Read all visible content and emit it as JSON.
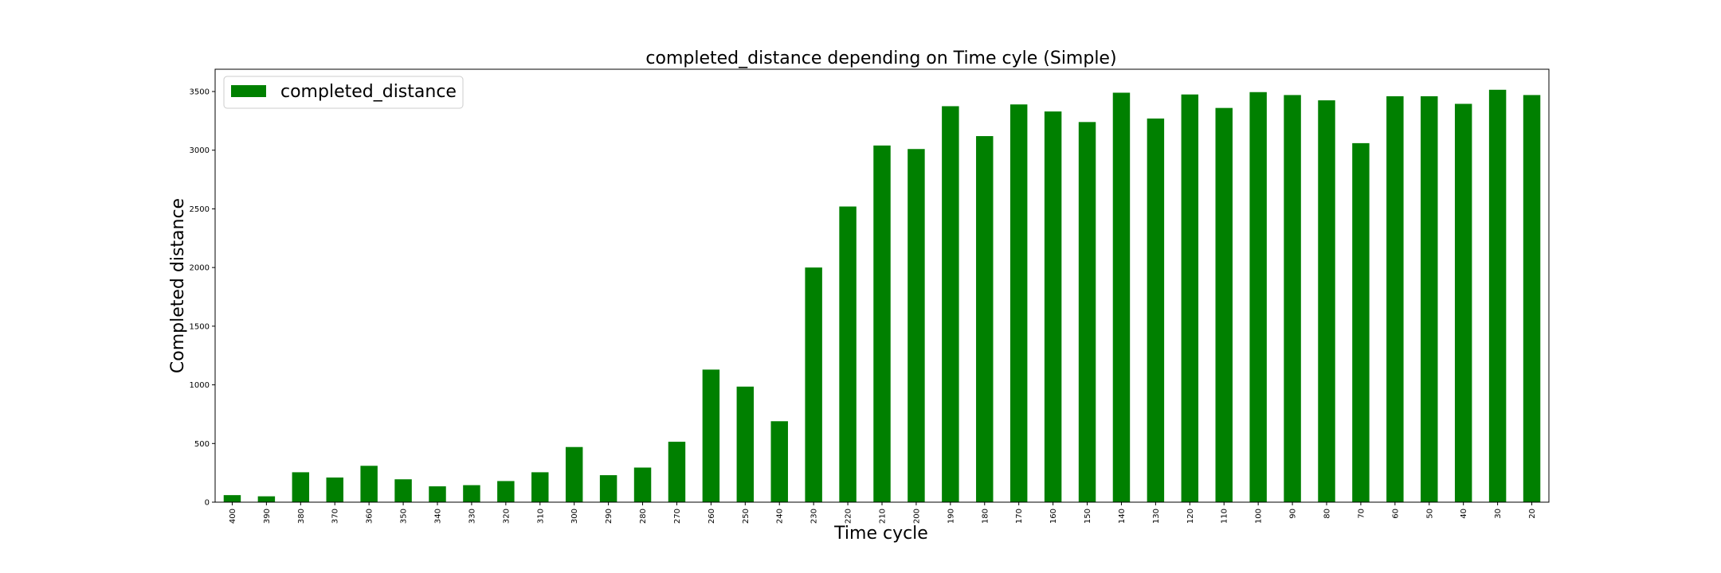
{
  "chart_data": {
    "type": "bar",
    "title": "completed_distance depending on Time cyle (Simple)",
    "xlabel": "Time cycle",
    "ylabel": "Completed distance",
    "categories": [
      "400",
      "390",
      "380",
      "370",
      "360",
      "350",
      "340",
      "330",
      "320",
      "310",
      "300",
      "290",
      "280",
      "270",
      "260",
      "250",
      "240",
      "230",
      "220",
      "210",
      "200",
      "190",
      "180",
      "170",
      "160",
      "150",
      "140",
      "130",
      "120",
      "110",
      "100",
      "90",
      "80",
      "70",
      "60",
      "50",
      "40",
      "30",
      "20"
    ],
    "series": [
      {
        "name": "completed_distance",
        "color": "#008000",
        "values": [
          60,
          50,
          255,
          210,
          310,
          195,
          135,
          145,
          180,
          255,
          470,
          230,
          295,
          515,
          1130,
          985,
          690,
          2000,
          2520,
          3040,
          3010,
          3375,
          3120,
          3390,
          3330,
          3240,
          3490,
          3270,
          3475,
          3360,
          3495,
          3470,
          3425,
          3060,
          3460,
          3460,
          3395,
          3515,
          3470
        ]
      }
    ],
    "yticks": [
      0,
      500,
      1000,
      1500,
      2000,
      2500,
      3000,
      3500
    ],
    "ylim": [
      0,
      3690
    ],
    "legend": "top-left",
    "grid": false
  }
}
